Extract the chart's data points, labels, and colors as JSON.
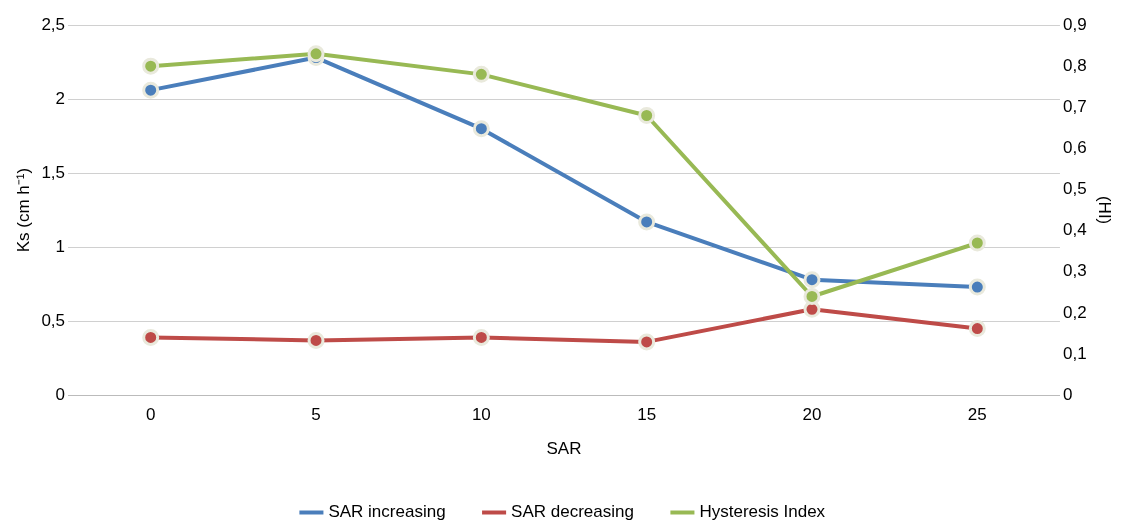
{
  "chart_data": {
    "type": "line",
    "xlabel": "SAR",
    "ylabel": "Ks (cm h⁻¹)",
    "y2label": "(HI)",
    "categories": [
      "0",
      "5",
      "10",
      "15",
      "20",
      "25"
    ],
    "series": [
      {
        "name": "SAR increasing",
        "color": "#4a7ebb",
        "values": [
          2.06,
          2.28,
          1.8,
          1.17,
          0.78,
          0.73
        ]
      },
      {
        "name": "SAR decreasing",
        "color": "#be4b48",
        "values": [
          0.39,
          0.37,
          0.39,
          0.36,
          0.58,
          0.45
        ]
      },
      {
        "name": "Hysteresis Index",
        "color": "#98b954",
        "axis": "y2",
        "values": [
          0.8,
          0.83,
          0.78,
          0.68,
          0.24,
          0.37
        ]
      }
    ],
    "ylim": [
      0,
      2.5
    ],
    "yticks": [
      0,
      {
        "value": 0.5,
        "label": "0,5"
      },
      1,
      {
        "value": 1.5,
        "label": "1,5"
      },
      2,
      {
        "value": 2.5,
        "label": "2,5"
      }
    ],
    "y2lim": [
      0,
      0.9
    ],
    "y2ticks": [
      0,
      {
        "value": 0.1,
        "label": "0,1"
      },
      {
        "value": 0.2,
        "label": "0,2"
      },
      {
        "value": 0.3,
        "label": "0,3"
      },
      {
        "value": 0.4,
        "label": "0,4"
      },
      {
        "value": 0.5,
        "label": "0,5"
      },
      {
        "value": 0.6,
        "label": "0,6"
      },
      {
        "value": 0.7,
        "label": "0,7"
      },
      {
        "value": 0.8,
        "label": "0,8"
      },
      {
        "value": 0.9,
        "label": "0,9"
      }
    ],
    "grid": "y",
    "legend": "bottom",
    "marker": "circle",
    "line_style": "solid"
  }
}
